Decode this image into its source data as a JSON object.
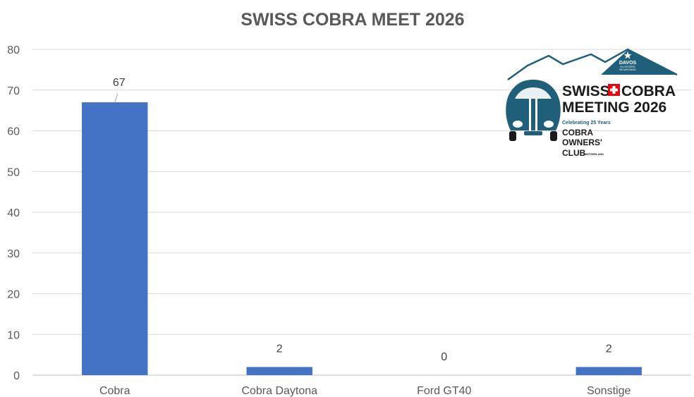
{
  "chart_data": {
    "type": "bar",
    "title": "SWISS COBRA MEET 2026",
    "categories": [
      "Cobra",
      "Cobra Daytona",
      "Ford GT40",
      "Sonstige"
    ],
    "values": [
      67,
      2,
      0,
      2
    ],
    "data_labels": [
      "67",
      "2",
      "0",
      "2"
    ],
    "y_ticks": [
      "0",
      "10",
      "20",
      "30",
      "40",
      "50",
      "60",
      "70",
      "80"
    ],
    "ylim": [
      0,
      80
    ],
    "grid": true,
    "legend": "none",
    "bar_color": "#4472c4"
  },
  "logo": {
    "line1_left": "SWISS",
    "line1_right": "COBRA",
    "line2": "MEETING 2026",
    "tagline": "Celebrating 25 Years",
    "club_line1": "COBRA",
    "club_line2": "OWNERS'",
    "club_line3": "CLUB",
    "club_country": "SWITZERLAND",
    "davos": "DAVOS",
    "davos_sub1": "KLOSTERS",
    "davos_sub2": "MOUNTAINS"
  }
}
